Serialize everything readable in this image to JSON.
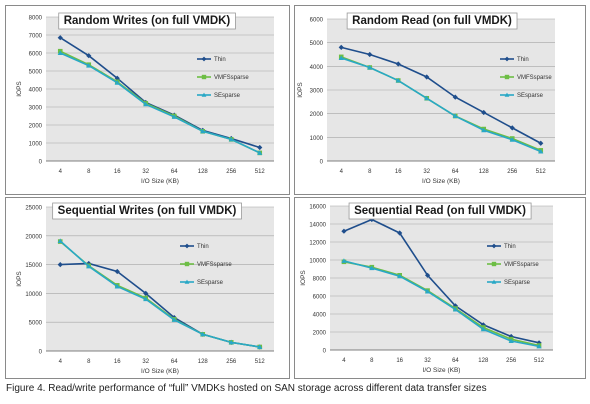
{
  "caption": "Figure 4. Read/write performance of “full” VMDKs hosted on SAN storage across different data transfer sizes",
  "colors": {
    "thin": "#1F4E8C",
    "vmfssparse": "#6DBE45",
    "sesparse": "#29A8C6",
    "panel_bg": "#E6E6E6",
    "grid": "#A6A6A6"
  },
  "chart_data": [
    {
      "type": "line",
      "title": "Random Writes (on full VMDK)",
      "xlabel": "I/O Size (KB)",
      "ylabel": "IOPS",
      "categories": [
        "4",
        "8",
        "16",
        "32",
        "64",
        "128",
        "256",
        "512"
      ],
      "ylim": [
        0,
        8000
      ],
      "yticks": [
        "0",
        "1000",
        "2000",
        "3000",
        "4000",
        "5000",
        "6000",
        "7000",
        "8000"
      ],
      "grid": true,
      "legend": "right",
      "series": [
        {
          "name": "Thin",
          "values": [
            6850,
            5850,
            4600,
            3250,
            2550,
            1700,
            1250,
            750
          ]
        },
        {
          "name": "VMFSsparse",
          "values": [
            6100,
            5350,
            4400,
            3200,
            2500,
            1650,
            1200,
            450
          ]
        },
        {
          "name": "SEsparse",
          "values": [
            6000,
            5300,
            4350,
            3150,
            2450,
            1650,
            1200,
            450
          ]
        }
      ]
    },
    {
      "type": "line",
      "title": "Random Read (on full VMDK)",
      "xlabel": "I/O Size (KB)",
      "ylabel": "IOPS",
      "categories": [
        "4",
        "8",
        "16",
        "32",
        "64",
        "128",
        "256",
        "512"
      ],
      "ylim": [
        0,
        6000
      ],
      "yticks": [
        "0",
        "1000",
        "2000",
        "3000",
        "4000",
        "5000",
        "6000"
      ],
      "grid": true,
      "legend": "right",
      "series": [
        {
          "name": "Thin",
          "values": [
            4800,
            4500,
            4100,
            3550,
            2700,
            2050,
            1400,
            750
          ]
        },
        {
          "name": "VMFSsparse",
          "values": [
            4400,
            3950,
            3400,
            2650,
            1900,
            1350,
            950,
            450
          ]
        },
        {
          "name": "SEsparse",
          "values": [
            4350,
            3950,
            3400,
            2650,
            1900,
            1300,
            900,
            400
          ]
        }
      ]
    },
    {
      "type": "line",
      "title": "Sequential Writes (on full VMDK)",
      "xlabel": "I/O Size (KB)",
      "ylabel": "IOPS",
      "categories": [
        "4",
        "8",
        "16",
        "32",
        "64",
        "128",
        "256",
        "512"
      ],
      "ylim": [
        0,
        25000
      ],
      "yticks": [
        "0",
        "5000",
        "10000",
        "15000",
        "20000",
        "25000"
      ],
      "grid": true,
      "legend": "right",
      "series": [
        {
          "name": "Thin",
          "values": [
            15000,
            15200,
            13800,
            10000,
            5800,
            2900,
            1500,
            700
          ]
        },
        {
          "name": "VMFSsparse",
          "values": [
            19000,
            14800,
            11400,
            9200,
            5500,
            2900,
            1500,
            700
          ]
        },
        {
          "name": "SEsparse",
          "values": [
            19100,
            14700,
            11200,
            9000,
            5400,
            2900,
            1500,
            700
          ]
        }
      ]
    },
    {
      "type": "line",
      "title": "Sequential Read (on full VMDK)",
      "xlabel": "I/O Size (KB)",
      "ylabel": "IOPS",
      "categories": [
        "4",
        "8",
        "16",
        "32",
        "64",
        "128",
        "256",
        "512"
      ],
      "ylim": [
        0,
        16000
      ],
      "yticks": [
        "0",
        "2000",
        "4000",
        "6000",
        "8000",
        "10000",
        "12000",
        "14000",
        "16000"
      ],
      "grid": true,
      "legend": "right",
      "series": [
        {
          "name": "Thin",
          "values": [
            13200,
            14500,
            13000,
            8300,
            4900,
            2800,
            1500,
            800
          ]
        },
        {
          "name": "VMFSsparse",
          "values": [
            9800,
            9200,
            8300,
            6600,
            4600,
            2500,
            1200,
            500
          ]
        },
        {
          "name": "SEsparse",
          "values": [
            9900,
            9100,
            8200,
            6500,
            4500,
            2300,
            1000,
            400
          ]
        }
      ]
    }
  ]
}
